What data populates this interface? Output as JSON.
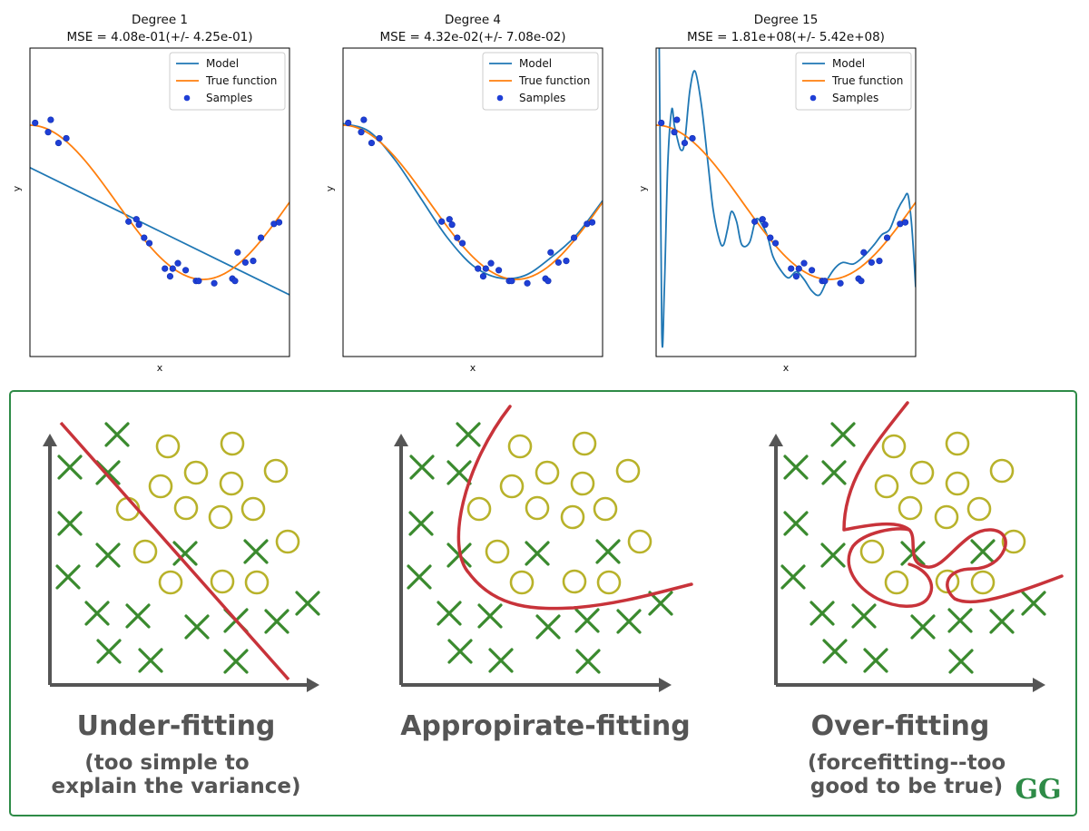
{
  "chart_data": [
    {
      "type": "line",
      "title": "Degree 1",
      "subtitle": "MSE = 4.08e-01(+/- 4.25e-01)",
      "xlabel": "x",
      "ylabel": "y",
      "xlim": [
        0,
        1
      ],
      "ylim": [
        -2,
        2
      ],
      "legend": {
        "placement": "top-right",
        "entries": [
          "Model",
          "True function",
          "Samples"
        ]
      },
      "series": [
        {
          "name": "Model",
          "kind": "line",
          "color": "#1f77b4",
          "x": [
            0,
            1
          ],
          "y": [
            0.45,
            -1.2
          ]
        },
        {
          "name": "True function",
          "kind": "line",
          "color": "#ff7f0e",
          "fn": "cos1.5pi"
        },
        {
          "name": "Samples",
          "kind": "scatter",
          "color": "#1f3fd6",
          "x": [
            0.02,
            0.07,
            0.08,
            0.11,
            0.14,
            0.38,
            0.41,
            0.42,
            0.44,
            0.46,
            0.52,
            0.54,
            0.55,
            0.57,
            0.6,
            0.64,
            0.65,
            0.71,
            0.78,
            0.79,
            0.8,
            0.83,
            0.86,
            0.89,
            0.94,
            0.96
          ],
          "y": [
            1.03,
            0.91,
            1.07,
            0.77,
            0.83,
            -0.25,
            -0.22,
            -0.29,
            -0.46,
            -0.53,
            -0.86,
            -0.96,
            -0.86,
            -0.79,
            -0.88,
            -1.02,
            -1.02,
            -1.05,
            -0.99,
            -1.02,
            -0.65,
            -0.78,
            -0.76,
            -0.46,
            -0.28,
            -0.26
          ]
        }
      ]
    },
    {
      "type": "line",
      "title": "Degree 4",
      "subtitle": "MSE = 4.32e-02(+/- 7.08e-02)",
      "xlabel": "x",
      "ylabel": "y",
      "xlim": [
        0,
        1
      ],
      "ylim": [
        -2,
        2
      ],
      "legend": {
        "placement": "top-right",
        "entries": [
          "Model",
          "True function",
          "Samples"
        ]
      },
      "series": [
        {
          "name": "Model",
          "kind": "line",
          "color": "#1f77b4",
          "x": [
            0,
            0.1,
            0.2,
            0.3,
            0.4,
            0.5,
            0.6,
            0.7,
            0.8,
            0.9,
            1.0
          ],
          "y": [
            1.02,
            0.92,
            0.55,
            0.05,
            -0.45,
            -0.82,
            -0.98,
            -0.95,
            -0.72,
            -0.42,
            0.02
          ]
        },
        {
          "name": "True function",
          "kind": "line",
          "color": "#ff7f0e",
          "fn": "cos1.5pi"
        },
        {
          "name": "Samples",
          "kind": "scatter",
          "color": "#1f3fd6",
          "x": [
            0.02,
            0.07,
            0.08,
            0.11,
            0.14,
            0.38,
            0.41,
            0.42,
            0.44,
            0.46,
            0.52,
            0.54,
            0.55,
            0.57,
            0.6,
            0.64,
            0.65,
            0.71,
            0.78,
            0.79,
            0.8,
            0.83,
            0.86,
            0.89,
            0.94,
            0.96
          ],
          "y": [
            1.03,
            0.91,
            1.07,
            0.77,
            0.83,
            -0.25,
            -0.22,
            -0.29,
            -0.46,
            -0.53,
            -0.86,
            -0.96,
            -0.86,
            -0.79,
            -0.88,
            -1.02,
            -1.02,
            -1.05,
            -0.99,
            -1.02,
            -0.65,
            -0.78,
            -0.76,
            -0.46,
            -0.28,
            -0.26
          ]
        }
      ]
    },
    {
      "type": "line",
      "title": "Degree 15",
      "subtitle": "MSE = 1.81e+08(+/- 5.42e+08)",
      "xlabel": "x",
      "ylabel": "y",
      "xlim": [
        0,
        1
      ],
      "ylim": [
        -2,
        2
      ],
      "legend": {
        "placement": "top-right",
        "entries": [
          "Model",
          "True function",
          "Samples"
        ]
      },
      "series": [
        {
          "name": "Model",
          "kind": "line",
          "color": "#1f77b4",
          "x": [
            0,
            0.012,
            0.022,
            0.032,
            0.045,
            0.06,
            0.07,
            0.08,
            0.095,
            0.11,
            0.13,
            0.15,
            0.175,
            0.2,
            0.22,
            0.245,
            0.26,
            0.275,
            0.29,
            0.31,
            0.33,
            0.36,
            0.385,
            0.41,
            0.43,
            0.45,
            0.48,
            0.51,
            0.54,
            0.57,
            0.6,
            0.63,
            0.66,
            0.69,
            0.72,
            0.76,
            0.8,
            0.84,
            0.87,
            0.9,
            0.93,
            0.955,
            0.97,
            0.982,
            0.99,
            1.0
          ],
          "y": [
            3.0,
            2.0,
            -1.7,
            -1.1,
            0.5,
            1.2,
            1.0,
            0.85,
            0.68,
            0.78,
            1.45,
            1.7,
            1.25,
            0.5,
            -0.1,
            -0.5,
            -0.55,
            -0.35,
            -0.12,
            -0.25,
            -0.55,
            -0.52,
            -0.22,
            -0.3,
            -0.45,
            -0.7,
            -0.88,
            -0.98,
            -0.9,
            -1.0,
            -1.15,
            -1.2,
            -1.0,
            -0.85,
            -0.78,
            -0.8,
            -0.7,
            -0.55,
            -0.42,
            -0.35,
            -0.1,
            0.05,
            0.1,
            -0.2,
            -0.55,
            -1.1
          ]
        },
        {
          "name": "True function",
          "kind": "line",
          "color": "#ff7f0e",
          "fn": "cos1.5pi"
        },
        {
          "name": "Samples",
          "kind": "scatter",
          "color": "#1f3fd6",
          "x": [
            0.02,
            0.07,
            0.08,
            0.11,
            0.14,
            0.38,
            0.41,
            0.42,
            0.44,
            0.46,
            0.52,
            0.54,
            0.55,
            0.57,
            0.6,
            0.64,
            0.65,
            0.71,
            0.78,
            0.79,
            0.8,
            0.83,
            0.86,
            0.89,
            0.94,
            0.96
          ],
          "y": [
            1.03,
            0.91,
            1.07,
            0.77,
            0.83,
            -0.25,
            -0.22,
            -0.29,
            -0.46,
            -0.53,
            -0.86,
            -0.96,
            -0.86,
            -0.79,
            -0.88,
            -1.02,
            -1.02,
            -1.05,
            -0.99,
            -1.02,
            -0.65,
            -0.78,
            -0.76,
            -0.46,
            -0.28,
            -0.26
          ]
        }
      ]
    }
  ],
  "diagram": {
    "colors": {
      "cross": "#3a8a2e",
      "circle": "#b8b22a",
      "boundary": "#c8333a",
      "axis": "#555555"
    },
    "panels": [
      {
        "title": "Under-fitting",
        "caption_lines": [
          "(too simple to",
          "explain the variance)"
        ]
      },
      {
        "title": "Appropirate-fitting",
        "caption_lines": []
      },
      {
        "title": "Over-fitting",
        "caption_lines": [
          "(forcefitting--too",
          "good to be true)"
        ]
      }
    ],
    "logo": "GG"
  }
}
